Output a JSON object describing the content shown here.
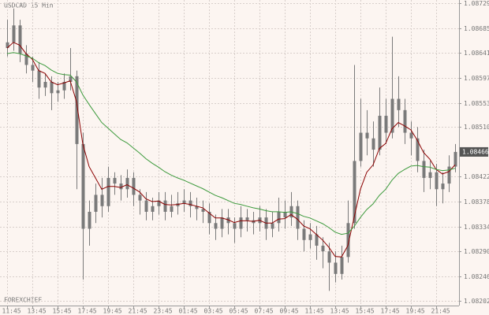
{
  "chart_data": {
    "type": "candlestick",
    "title": "USDCAD 15 Min",
    "watermark": "FOREXCHIEF",
    "color": "#7a7a7a",
    "grid": true,
    "categories": [
      "11:45",
      null,
      null,
      null,
      "13:45",
      null,
      null,
      null,
      "15:45",
      null,
      null,
      null,
      "17:45",
      null,
      null,
      null,
      "19:45",
      null,
      null,
      null,
      "21:45",
      null,
      null,
      null,
      "23:45",
      null,
      null,
      null,
      "01:45",
      null,
      null,
      null,
      "03:45",
      null,
      null,
      null,
      "05:45",
      null,
      null,
      null,
      "07:45",
      null,
      null,
      null,
      "09:45",
      null,
      null,
      null,
      "11:45",
      null,
      null,
      null,
      "13:45",
      null,
      null,
      null,
      "15:45",
      null,
      null,
      null,
      "17:45",
      null,
      null,
      null,
      "19:45",
      null,
      null,
      null,
      "21:45",
      null,
      null,
      null
    ],
    "open": [
      1.0865,
      1.0866,
      1.0869,
      1.0864,
      1.0862,
      1.0861,
      1.0858,
      1.0859,
      1.0857,
      1.08575,
      1.0859,
      1.086,
      1.0848,
      1.0833,
      1.0836,
      1.0839,
      1.0837,
      1.0842,
      1.0841,
      1.084,
      1.0842,
      1.0839,
      1.0838,
      1.0836,
      1.0837,
      1.0838,
      1.0836,
      1.0837,
      1.08375,
      1.0838,
      1.0837,
      1.08365,
      1.0836,
      1.0834,
      1.0833,
      1.0835,
      1.0834,
      1.0833,
      1.0835,
      1.08345,
      1.0834,
      1.0835,
      1.0833,
      1.0834,
      1.0836,
      1.0835,
      1.0837,
      1.0833,
      1.0831,
      1.0832,
      1.083,
      1.0829,
      1.0827,
      1.0825,
      1.0828,
      1.0834,
      1.0845,
      1.085,
      1.0849,
      1.0847,
      1.0853,
      1.085,
      1.0856,
      1.0854,
      1.085,
      1.0849,
      1.0845,
      1.0842,
      1.0843,
      1.084,
      1.0841,
      1.0844
    ],
    "high": [
      1.087,
      1.0872,
      1.087,
      1.08655,
      1.08635,
      1.08625,
      1.08605,
      1.086,
      1.0859,
      1.08605,
      1.0865,
      1.0861,
      1.085,
      1.0838,
      1.0841,
      1.0842,
      1.0844,
      1.0843,
      1.08425,
      1.08435,
      1.0843,
      1.084,
      1.08395,
      1.08385,
      1.08395,
      1.08395,
      1.0839,
      1.08395,
      1.084,
      1.08395,
      1.08385,
      1.0838,
      1.08375,
      1.08355,
      1.08365,
      1.08365,
      1.0835,
      1.0837,
      1.08365,
      1.0836,
      1.0837,
      1.08365,
      1.0836,
      1.08385,
      1.0838,
      1.08395,
      1.0838,
      1.08345,
      1.0834,
      1.08335,
      1.08315,
      1.08305,
      1.0829,
      1.083,
      1.0838,
      1.0862,
      1.0856,
      1.0854,
      1.0852,
      1.0858,
      1.0856,
      1.0867,
      1.086,
      1.0856,
      1.0852,
      1.0851,
      1.0847,
      1.0845,
      1.08445,
      1.0843,
      1.0846,
      1.0848
    ],
    "low": [
      1.08635,
      1.08645,
      1.08625,
      1.08605,
      1.0859,
      1.0856,
      1.08565,
      1.0854,
      1.08555,
      1.0856,
      1.08575,
      1.084,
      1.0824,
      1.083,
      1.0834,
      1.0835,
      1.0836,
      1.0839,
      1.0838,
      1.08385,
      1.0837,
      1.08355,
      1.08345,
      1.08345,
      1.08355,
      1.08345,
      1.0835,
      1.08355,
      1.0836,
      1.0835,
      1.08345,
      1.0834,
      1.0832,
      1.0831,
      1.08315,
      1.0832,
      1.08305,
      1.08315,
      1.08325,
      1.0832,
      1.08325,
      1.0831,
      1.08315,
      1.08325,
      1.0833,
      1.08335,
      1.0831,
      1.0829,
      1.08295,
      1.08275,
      1.0826,
      1.0822,
      1.08235,
      1.0824,
      1.0827,
      1.0833,
      1.0844,
      1.0846,
      1.0844,
      1.0846,
      1.0848,
      1.0849,
      1.0851,
      1.0848,
      1.0846,
      1.0843,
      1.08395,
      1.084,
      1.0837,
      1.08375,
      1.08395,
      1.0843
    ],
    "close": [
      1.0866,
      1.0869,
      1.0864,
      1.0862,
      1.0861,
      1.0858,
      1.0859,
      1.0857,
      1.08575,
      1.0859,
      1.086,
      1.0848,
      1.0833,
      1.0836,
      1.0839,
      1.0837,
      1.0842,
      1.0841,
      1.084,
      1.0842,
      1.0839,
      1.0838,
      1.0836,
      1.0837,
      1.0838,
      1.0836,
      1.0837,
      1.08375,
      1.0838,
      1.0837,
      1.08365,
      1.0836,
      1.0834,
      1.0833,
      1.0835,
      1.0834,
      1.0833,
      1.0835,
      1.08345,
      1.0834,
      1.0835,
      1.0833,
      1.0834,
      1.0836,
      1.0835,
      1.0837,
      1.0833,
      1.0831,
      1.0832,
      1.083,
      1.0829,
      1.0827,
      1.0825,
      1.0828,
      1.0834,
      1.0845,
      1.085,
      1.0849,
      1.0847,
      1.0853,
      1.085,
      1.0856,
      1.0854,
      1.085,
      1.0849,
      1.0845,
      1.0842,
      1.0843,
      1.084,
      1.0841,
      1.0844,
      1.08466
    ],
    "lines": [
      {
        "color": "#8b0000",
        "values": [
          1.0865,
          1.0866,
          1.08655,
          1.0864,
          1.0863,
          1.0861,
          1.08605,
          1.0859,
          1.08585,
          1.08588,
          1.08592,
          1.08555,
          1.0848,
          1.0844,
          1.0842,
          1.084,
          1.08405,
          1.08405,
          1.08403,
          1.08408,
          1.08402,
          1.08395,
          1.08383,
          1.08378,
          1.08379,
          1.08373,
          1.08372,
          1.08373,
          1.08375,
          1.08373,
          1.0837,
          1.08367,
          1.08358,
          1.08349,
          1.08349,
          1.08346,
          1.08341,
          1.08344,
          1.08344,
          1.08343,
          1.08345,
          1.0834,
          1.0834,
          1.08347,
          1.08348,
          1.08355,
          1.08347,
          1.08335,
          1.0833,
          1.0832,
          1.0831,
          1.08297,
          1.08281,
          1.0828,
          1.083,
          1.0835,
          1.084,
          1.0843,
          1.08443,
          1.08472,
          1.08481,
          1.08507,
          1.08518,
          1.08512,
          1.08505,
          1.08487,
          1.08465,
          1.08453,
          1.08435,
          1.08427,
          1.08431,
          1.08443
        ]
      },
      {
        "color": "#3c9a3c",
        "values": [
          1.0864,
          1.08642,
          1.0864,
          1.08636,
          1.08632,
          1.08624,
          1.08619,
          1.08611,
          1.08605,
          1.08603,
          1.08602,
          1.0859,
          1.08567,
          1.0855,
          1.08534,
          1.08518,
          1.08508,
          1.08498,
          1.08488,
          1.08482,
          1.08473,
          1.08464,
          1.08454,
          1.08446,
          1.08439,
          1.08431,
          1.08425,
          1.0842,
          1.08416,
          1.08411,
          1.08406,
          1.08401,
          1.08395,
          1.08389,
          1.08385,
          1.0838,
          1.08375,
          1.08373,
          1.0837,
          1.08367,
          1.08365,
          1.08362,
          1.0836,
          1.0836,
          1.08359,
          1.0836,
          1.08357,
          1.08352,
          1.08349,
          1.08344,
          1.08339,
          1.08332,
          1.08324,
          1.0832,
          1.08322,
          1.08334,
          1.0835,
          1.08364,
          1.08374,
          1.08389,
          1.084,
          1.08416,
          1.08428,
          1.08435,
          1.08441,
          1.08442,
          1.0844,
          1.08439,
          1.08435,
          1.08433,
          1.08434,
          1.08437
        ]
      }
    ],
    "ylim": [
      1.08194,
      1.08735
    ],
    "yticks": [
      1.08729,
      1.08685,
      1.08641,
      1.08597,
      1.08553,
      {
        "value": 1.0851,
        "label": "1.08510"
      },
      1.08422,
      1.08378,
      1.08334,
      {
        "value": 1.0829,
        "label": "1.08290"
      },
      1.08246,
      1.08202
    ]
  }
}
